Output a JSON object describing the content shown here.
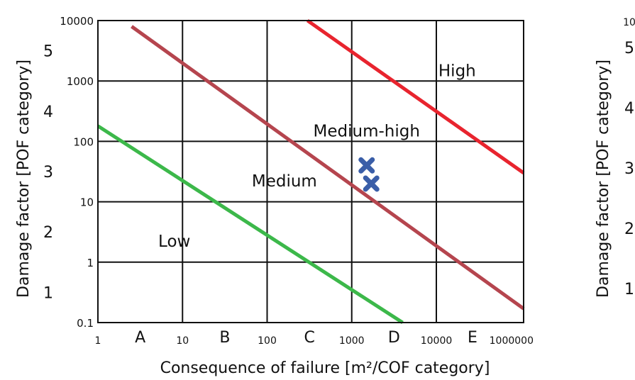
{
  "chart_data": {
    "type": "line",
    "xlabel": "Consequence of failure [m²/COF category]",
    "ylabel": "Damage factor [POF category]",
    "x_scale": "log",
    "y_scale": "log",
    "xlim": [
      1,
      1000000
    ],
    "ylim": [
      0.1,
      10000
    ],
    "grid": true,
    "x_ticks": [
      "1",
      "10",
      "100",
      "1000",
      "10000",
      "1000000"
    ],
    "y_ticks": [
      "0.1",
      "1",
      "10",
      "100",
      "1000",
      "10000"
    ],
    "x_categories": [
      {
        "label": "A",
        "from": 1,
        "to": 10
      },
      {
        "label": "B",
        "from": 10,
        "to": 100
      },
      {
        "label": "C",
        "from": 100,
        "to": 1000
      },
      {
        "label": "D",
        "from": 1000,
        "to": 10000
      },
      {
        "label": "E",
        "from": 10000,
        "to": 1000000
      }
    ],
    "y_categories": [
      {
        "label": "1",
        "from": 0.1,
        "to": 1
      },
      {
        "label": "2",
        "from": 1,
        "to": 10
      },
      {
        "label": "3",
        "from": 10,
        "to": 100
      },
      {
        "label": "4",
        "from": 100,
        "to": 1000
      },
      {
        "label": "5",
        "from": 1000,
        "to": 10000
      }
    ],
    "lines": [
      {
        "color": "#3cb84a",
        "points": [
          [
            1,
            180
          ],
          [
            4000,
            0.1
          ]
        ]
      },
      {
        "color": "#b5454e",
        "points": [
          [
            2.5,
            8000
          ],
          [
            1000000,
            0.17
          ]
        ]
      },
      {
        "color": "#e8242e",
        "points": [
          [
            300,
            10000
          ],
          [
            1000000,
            30
          ]
        ]
      }
    ],
    "regions": [
      {
        "label": "Low",
        "x": 8,
        "y": 1.8
      },
      {
        "label": "Medium",
        "x": 160,
        "y": 18
      },
      {
        "label": "Medium-high",
        "x": 1500,
        "y": 120
      },
      {
        "label": "High",
        "x": 30000,
        "y": 1200
      }
    ],
    "points": [
      {
        "x": 1500,
        "y": 40,
        "marker": "x",
        "color": "#3a5ea8"
      },
      {
        "x": 1700,
        "y": 20,
        "marker": "x",
        "color": "#3a5ea8"
      }
    ],
    "partial_chart_ylabel": "Damage factor [POF category]",
    "partial_chart_y_categories": [
      "5",
      "4",
      "3",
      "2",
      "1"
    ],
    "partial_chart_top_tick": "10"
  }
}
